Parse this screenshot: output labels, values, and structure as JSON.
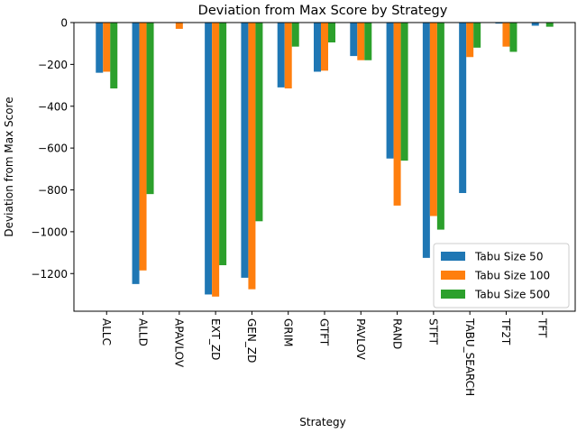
{
  "chart_data": {
    "type": "bar",
    "title": "Deviation from Max Score by Strategy",
    "xlabel": "Strategy",
    "ylabel": "Deviation from Max Score",
    "ylim": [
      -1380,
      0
    ],
    "yticks": [
      0,
      -200,
      -400,
      -600,
      -800,
      -1000,
      -1200
    ],
    "ytick_labels": [
      "0",
      "−200",
      "−400",
      "−600",
      "−800",
      "−1000",
      "−1200"
    ],
    "grid": false,
    "legend_position": "lower-right",
    "categories": [
      "ALLC",
      "ALLD",
      "APAVLOV",
      "EXT_ZD",
      "GEN_ZD",
      "GRIM",
      "GTFT",
      "PAVLOV",
      "RAND",
      "STFT",
      "TABU_SEARCH",
      "TF2T",
      "TFT"
    ],
    "series": [
      {
        "name": "Tabu Size 50",
        "color": "#1f77b4",
        "values": [
          -240,
          -1250,
          0,
          -1300,
          -1220,
          -310,
          -235,
          -160,
          -650,
          -1125,
          -815,
          -5,
          -15
        ]
      },
      {
        "name": "Tabu Size 100",
        "color": "#ff7f0e",
        "values": [
          -235,
          -1185,
          -30,
          -1310,
          -1275,
          -315,
          -230,
          -180,
          -875,
          -925,
          -165,
          -115,
          0
        ]
      },
      {
        "name": "Tabu Size 500",
        "color": "#2ca02c",
        "values": [
          -315,
          -820,
          0,
          -1160,
          -950,
          -115,
          -95,
          -180,
          -660,
          -990,
          -120,
          -140,
          -20
        ]
      }
    ]
  }
}
